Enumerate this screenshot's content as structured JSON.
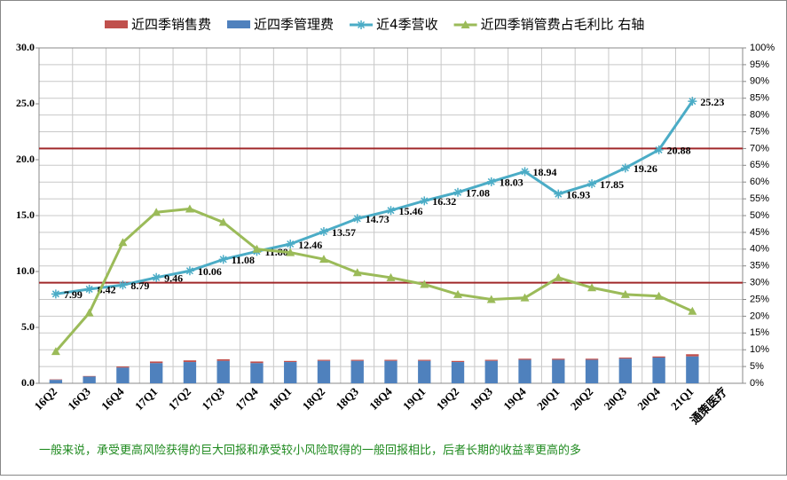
{
  "chart_data": {
    "type": "combo",
    "categories": [
      "16Q2",
      "16Q3",
      "16Q4",
      "17Q1",
      "17Q2",
      "17Q3",
      "17Q4",
      "18Q1",
      "18Q2",
      "18Q3",
      "18Q4",
      "19Q1",
      "19Q2",
      "19Q3",
      "19Q4",
      "20Q1",
      "20Q2",
      "20Q3",
      "20Q4",
      "21Q1",
      "通策医疗"
    ],
    "series": [
      {
        "name": "近四季销售费",
        "kind": "bar",
        "stack_on": 1,
        "color": "#c0504d",
        "values": [
          0.05,
          0.05,
          0.1,
          0.15,
          0.15,
          0.15,
          0.15,
          0.1,
          0.1,
          0.1,
          0.1,
          0.1,
          0.1,
          0.1,
          0.1,
          0.1,
          0.1,
          0.1,
          0.1,
          0.2,
          null
        ]
      },
      {
        "name": "近四季管理费",
        "kind": "bar",
        "color": "#4f81bd",
        "values": [
          0.3,
          0.6,
          1.4,
          1.8,
          1.9,
          2.0,
          1.8,
          1.9,
          2.0,
          2.0,
          2.0,
          2.0,
          1.9,
          2.0,
          2.1,
          2.1,
          2.1,
          2.2,
          2.3,
          2.4,
          null
        ]
      },
      {
        "name": "近4季营收",
        "kind": "line",
        "marker": "star",
        "color": "#4bacc6",
        "values": [
          7.99,
          8.42,
          8.79,
          9.46,
          10.06,
          11.08,
          11.8,
          12.46,
          13.57,
          14.73,
          15.46,
          16.32,
          17.08,
          18.03,
          18.94,
          16.93,
          17.85,
          19.26,
          20.88,
          25.23,
          null
        ],
        "value_labels": [
          "7.99",
          "8.42",
          "8.79",
          "9.46",
          "10.06",
          "11.08",
          "11.80",
          "12.46",
          "13.57",
          "14.73",
          "15.46",
          "16.32",
          "17.08",
          "18.03",
          "18.94",
          "16.93",
          "17.85",
          "19.26",
          "20.88",
          "25.23",
          null
        ]
      },
      {
        "name": "近四季销管费占毛利比 右轴",
        "kind": "line",
        "marker": "triangle",
        "axis": "y2",
        "color": "#9bbb59",
        "values": [
          9.5,
          21,
          42,
          51,
          52,
          48,
          40,
          39,
          37,
          33,
          31.5,
          29.5,
          26.5,
          25,
          25.5,
          31.5,
          28.5,
          26.5,
          26,
          21.5,
          null
        ]
      }
    ],
    "reference_lines": {
      "axis": "y2",
      "color": "#a0282a",
      "values": [
        70,
        30
      ]
    },
    "ylim": [
      0,
      30
    ],
    "yticks": [
      {
        "value": 0,
        "label": "0.0"
      },
      {
        "value": 5,
        "label": "5.0"
      },
      {
        "value": 10,
        "label": "10.0"
      },
      {
        "value": 15,
        "label": "15.0"
      },
      {
        "value": 20,
        "label": "20.0"
      },
      {
        "value": 25,
        "label": "25.0"
      },
      {
        "value": 30,
        "label": "30.0"
      }
    ],
    "y2lim": [
      0,
      100
    ],
    "y2ticks": [
      {
        "value": 0,
        "label": "0%"
      },
      {
        "value": 5,
        "label": "5%"
      },
      {
        "value": 10,
        "label": "10%"
      },
      {
        "value": 15,
        "label": "15%"
      },
      {
        "value": 20,
        "label": "20%"
      },
      {
        "value": 25,
        "label": "25%"
      },
      {
        "value": 30,
        "label": "30%"
      },
      {
        "value": 35,
        "label": "35%"
      },
      {
        "value": 40,
        "label": "40%"
      },
      {
        "value": 45,
        "label": "45%"
      },
      {
        "value": 50,
        "label": "50%"
      },
      {
        "value": 55,
        "label": "55%"
      },
      {
        "value": 60,
        "label": "60%"
      },
      {
        "value": 65,
        "label": "65%"
      },
      {
        "value": 70,
        "label": "70%"
      },
      {
        "value": 75,
        "label": "75%"
      },
      {
        "value": 80,
        "label": "80%"
      },
      {
        "value": 85,
        "label": "85%"
      },
      {
        "value": 90,
        "label": "90%"
      },
      {
        "value": 95,
        "label": "95%"
      },
      {
        "value": 100,
        "label": "100%"
      }
    ],
    "grid": true,
    "legend": "top",
    "annotations": [
      "一般来说，承受更高风险获得的巨大回报和承受较小风险取得的一般回报相比，后者长期的收益率更高的多"
    ]
  }
}
